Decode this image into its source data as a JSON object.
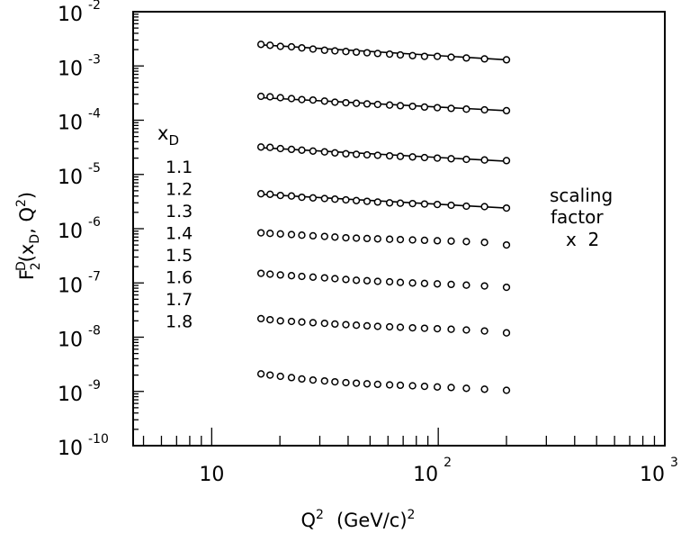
{
  "chart_data": {
    "type": "scatter",
    "title": "",
    "xlabel": {
      "base": "Q",
      "sup": "2",
      "unit": "(GeV/c)",
      "unit_sup": "2"
    },
    "ylabel": {
      "main": "F",
      "sup": "D",
      "sub": "2",
      "args": "(x",
      "args_sub": "D",
      "args_tail": ", Q",
      "args_sup": "2",
      "close": ")"
    },
    "x_scale": "log",
    "y_scale": "log",
    "xlim": [
      4.5,
      1000
    ],
    "ylim": [
      1e-10,
      0.01
    ],
    "x_ticks": [
      {
        "value": 10,
        "label": "10",
        "exp": ""
      },
      {
        "value": 100,
        "label": "10",
        "exp": "2"
      },
      {
        "value": 1000,
        "label": "10",
        "exp": "3"
      }
    ],
    "y_ticks": [
      {
        "value": 0.01,
        "label": "10",
        "exp": "-2"
      },
      {
        "value": 0.001,
        "label": "10",
        "exp": "-3"
      },
      {
        "value": 0.0001,
        "label": "10",
        "exp": "-4"
      },
      {
        "value": 1e-05,
        "label": "10",
        "exp": "-5"
      },
      {
        "value": 1e-06,
        "label": "10",
        "exp": "-6"
      },
      {
        "value": 1e-07,
        "label": "10",
        "exp": "-7"
      },
      {
        "value": 1e-08,
        "label": "10",
        "exp": "-8"
      },
      {
        "value": 1e-09,
        "label": "10",
        "exp": "-9"
      },
      {
        "value": 1e-10,
        "label": "10",
        "exp": "-10"
      }
    ],
    "legend": {
      "title": "x",
      "title_sub": "D",
      "values": [
        "1.1",
        "1.2",
        "1.3",
        "1.4",
        "1.5",
        "1.6",
        "1.7",
        "1.8"
      ]
    },
    "annotation": [
      "scaling",
      "factor",
      "x  2"
    ],
    "x": [
      16.5,
      18.1,
      20.1,
      22.5,
      25.0,
      28.0,
      31.5,
      35.0,
      39.1,
      43.5,
      48.5,
      54.0,
      61.0,
      68.0,
      77.0,
      87.0,
      99.0,
      114.0,
      133.0,
      160.0,
      200.0
    ],
    "series": [
      {
        "values": [
          0.0025,
          0.0024,
          0.0023,
          0.00225,
          0.00215,
          0.00205,
          0.00195,
          0.0019,
          0.00185,
          0.0018,
          0.00175,
          0.0017,
          0.00165,
          0.0016,
          0.00155,
          0.0015,
          0.0015,
          0.00145,
          0.0014,
          0.00135,
          0.0013
        ],
        "fit": [
          [
            16.5,
            0.00245
          ],
          [
            200.0,
            0.0013
          ]
        ]
      },
      {
        "values": [
          0.000275,
          0.00027,
          0.00026,
          0.00025,
          0.00024,
          0.000235,
          0.000225,
          0.000215,
          0.00021,
          0.000205,
          0.0002,
          0.000195,
          0.00019,
          0.000185,
          0.00018,
          0.000175,
          0.00017,
          0.000165,
          0.00016,
          0.000155,
          0.00015
        ],
        "fit": [
          [
            16.5,
            0.00026
          ],
          [
            200.0,
            0.00015
          ]
        ]
      },
      {
        "values": [
          3.2e-05,
          3.15e-05,
          3e-05,
          2.9e-05,
          2.8e-05,
          2.7e-05,
          2.6e-05,
          2.5e-05,
          2.4e-05,
          2.35e-05,
          2.3e-05,
          2.25e-05,
          2.2e-05,
          2.15e-05,
          2.1e-05,
          2.05e-05,
          2e-05,
          1.95e-05,
          1.9e-05,
          1.85e-05,
          1.8e-05
        ],
        "fit": [
          [
            16.5,
            3.1e-05
          ],
          [
            200.0,
            1.75e-05
          ]
        ]
      },
      {
        "values": [
          4.4e-06,
          4.3e-06,
          4.1e-06,
          4e-06,
          3.8e-06,
          3.7e-06,
          3.6e-06,
          3.5e-06,
          3.4e-06,
          3.3e-06,
          3.2e-06,
          3.1e-06,
          3e-06,
          2.95e-06,
          2.9e-06,
          2.85e-06,
          2.8e-06,
          2.7e-06,
          2.6e-06,
          2.55e-06,
          2.4e-06
        ],
        "fit": [
          [
            16.5,
            4.3e-06
          ],
          [
            200.0,
            2.4e-06
          ]
        ]
      },
      {
        "values": [
          8.4e-07,
          8.2e-07,
          8e-07,
          7.8e-07,
          7.6e-07,
          7.4e-07,
          7.2e-07,
          7e-07,
          6.8e-07,
          6.7e-07,
          6.6e-07,
          6.5e-07,
          6.4e-07,
          6.3e-07,
          6.2e-07,
          6.1e-07,
          6e-07,
          5.9e-07,
          5.8e-07,
          5.6e-07,
          5e-07
        ]
      },
      {
        "values": [
          1.5e-07,
          1.45e-07,
          1.4e-07,
          1.36e-07,
          1.32e-07,
          1.28e-07,
          1.24e-07,
          1.2e-07,
          1.16e-07,
          1.12e-07,
          1.1e-07,
          1.07e-07,
          1.05e-07,
          1.02e-07,
          1e-07,
          9.8e-08,
          9.6e-08,
          9.4e-08,
          9.1e-08,
          8.8e-08,
          8.3e-08
        ]
      },
      {
        "values": [
          2.2e-08,
          2.1e-08,
          2e-08,
          1.95e-08,
          1.9e-08,
          1.85e-08,
          1.8e-08,
          1.75e-08,
          1.7e-08,
          1.66e-08,
          1.62e-08,
          1.58e-08,
          1.55e-08,
          1.52e-08,
          1.49e-08,
          1.46e-08,
          1.43e-08,
          1.4e-08,
          1.36e-08,
          1.3e-08,
          1.2e-08
        ]
      },
      {
        "values": [
          2.1e-09,
          2e-09,
          1.9e-09,
          1.8e-09,
          1.7e-09,
          1.62e-09,
          1.56e-09,
          1.5e-09,
          1.45e-09,
          1.42e-09,
          1.38e-09,
          1.35e-09,
          1.32e-09,
          1.3e-09,
          1.27e-09,
          1.24e-09,
          1.21e-09,
          1.18e-09,
          1.14e-09,
          1.1e-09,
          1.05e-09
        ]
      }
    ],
    "grid": false,
    "colors": {
      "ink": "#000000",
      "background": "#ffffff"
    }
  }
}
